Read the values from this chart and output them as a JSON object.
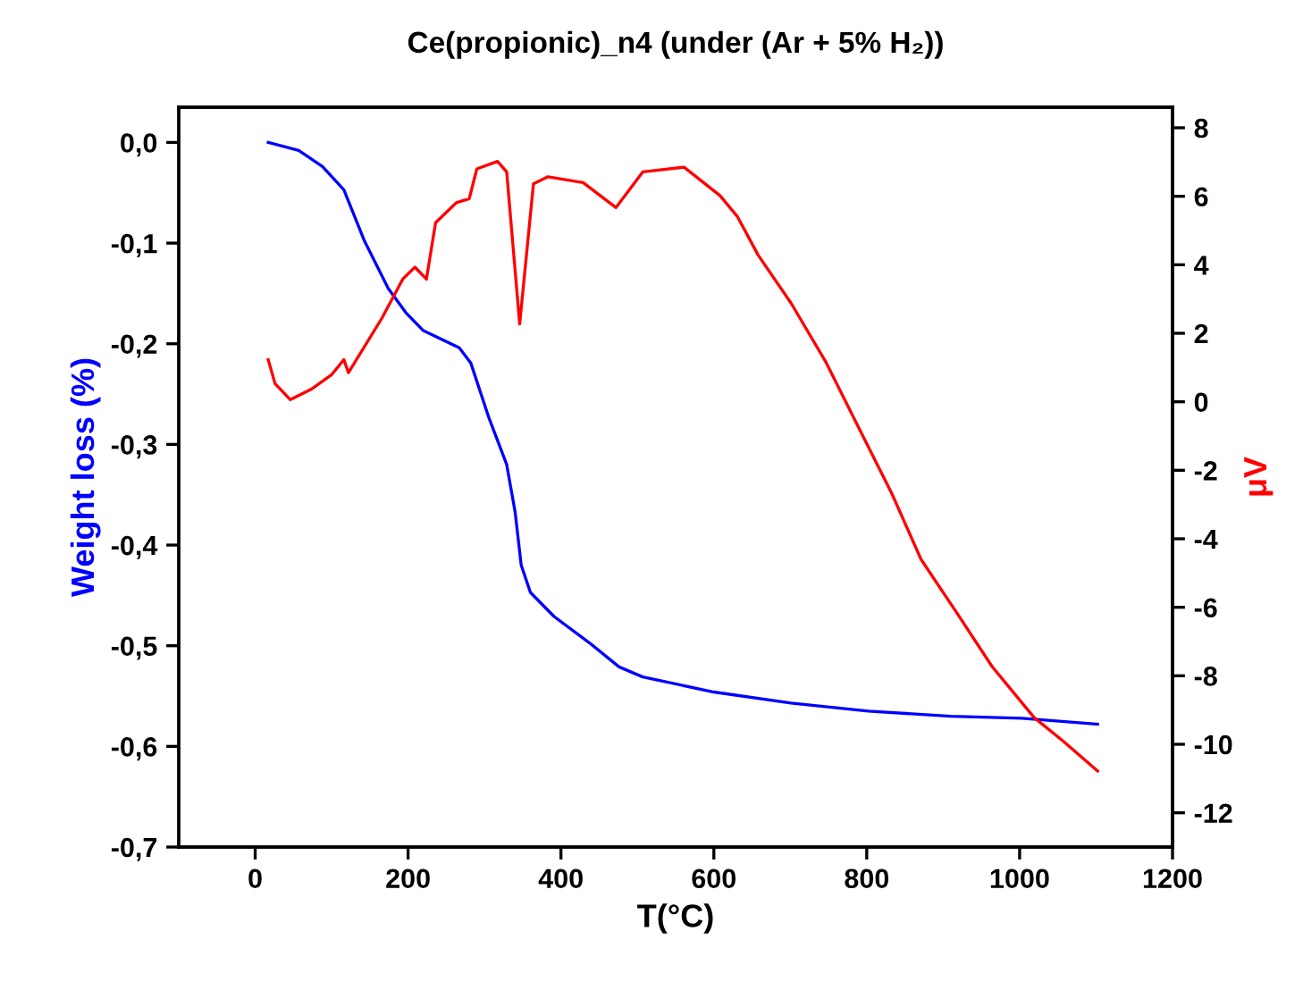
{
  "chart_data": {
    "type": "line",
    "title": "Ce(propionic)_n4 (under (Ar + 5% H₂))",
    "xlabel": "T(°C)",
    "ylabel": "Weight loss (%)",
    "y2label": "μV",
    "xlim": [
      -100,
      1200
    ],
    "xticks": [
      0,
      200,
      400,
      600,
      800,
      1000,
      1200
    ],
    "ylim": [
      -0.7,
      0.035
    ],
    "yticks": [
      {
        "value": 0,
        "label": "0,0"
      },
      {
        "value": -0.1,
        "label": "-0,1"
      },
      {
        "value": -0.2,
        "label": "-0,2"
      },
      {
        "value": -0.3,
        "label": "-0,3"
      },
      {
        "value": -0.4,
        "label": "-0,4"
      },
      {
        "value": -0.5,
        "label": "-0,5"
      },
      {
        "value": -0.6,
        "label": "-0,6"
      },
      {
        "value": -0.7,
        "label": "-0,7"
      }
    ],
    "y2lim": [
      -13,
      8.6
    ],
    "y2ticks": [
      -12,
      -10,
      -8,
      -6,
      -4,
      -2,
      0,
      2,
      4,
      6,
      8
    ],
    "grid": false,
    "legend": false,
    "series": [
      {
        "color": "#0000ff",
        "x": [
          17,
          57,
          88,
          116,
          143,
          174,
          197,
          220,
          267,
          282,
          305,
          329,
          340,
          348,
          360,
          391,
          437,
          476,
          507,
          600,
          701,
          802,
          910,
          1003,
          1102
        ],
        "values": [
          0.0,
          -0.008,
          -0.024,
          -0.047,
          -0.098,
          -0.145,
          -0.169,
          -0.187,
          -0.204,
          -0.219,
          -0.272,
          -0.32,
          -0.367,
          -0.42,
          -0.447,
          -0.471,
          -0.497,
          -0.521,
          -0.531,
          -0.546,
          -0.557,
          -0.565,
          -0.57,
          -0.572,
          -0.578
        ]
      },
      {
        "color": "#ff0000",
        "axis": "y2",
        "x": [
          17,
          26,
          46,
          73,
          100,
          116,
          122,
          166,
          193,
          209,
          224,
          236,
          263,
          280,
          290,
          317,
          329,
          346,
          364,
          383,
          429,
          472,
          507,
          561,
          608,
          631,
          658,
          701,
          747,
          786,
          833,
          871,
          918,
          964,
          1019,
          1057,
          1102
        ],
        "values": [
          1.23,
          0.53,
          0.06,
          0.36,
          0.79,
          1.23,
          0.85,
          2.45,
          3.58,
          3.93,
          3.58,
          5.23,
          5.81,
          5.93,
          6.8,
          7.02,
          6.71,
          2.27,
          6.36,
          6.57,
          6.4,
          5.67,
          6.71,
          6.85,
          6.02,
          5.4,
          4.28,
          2.88,
          1.14,
          -0.6,
          -2.69,
          -4.6,
          -6.17,
          -7.73,
          -9.22,
          -9.91,
          -10.78
        ]
      }
    ]
  }
}
